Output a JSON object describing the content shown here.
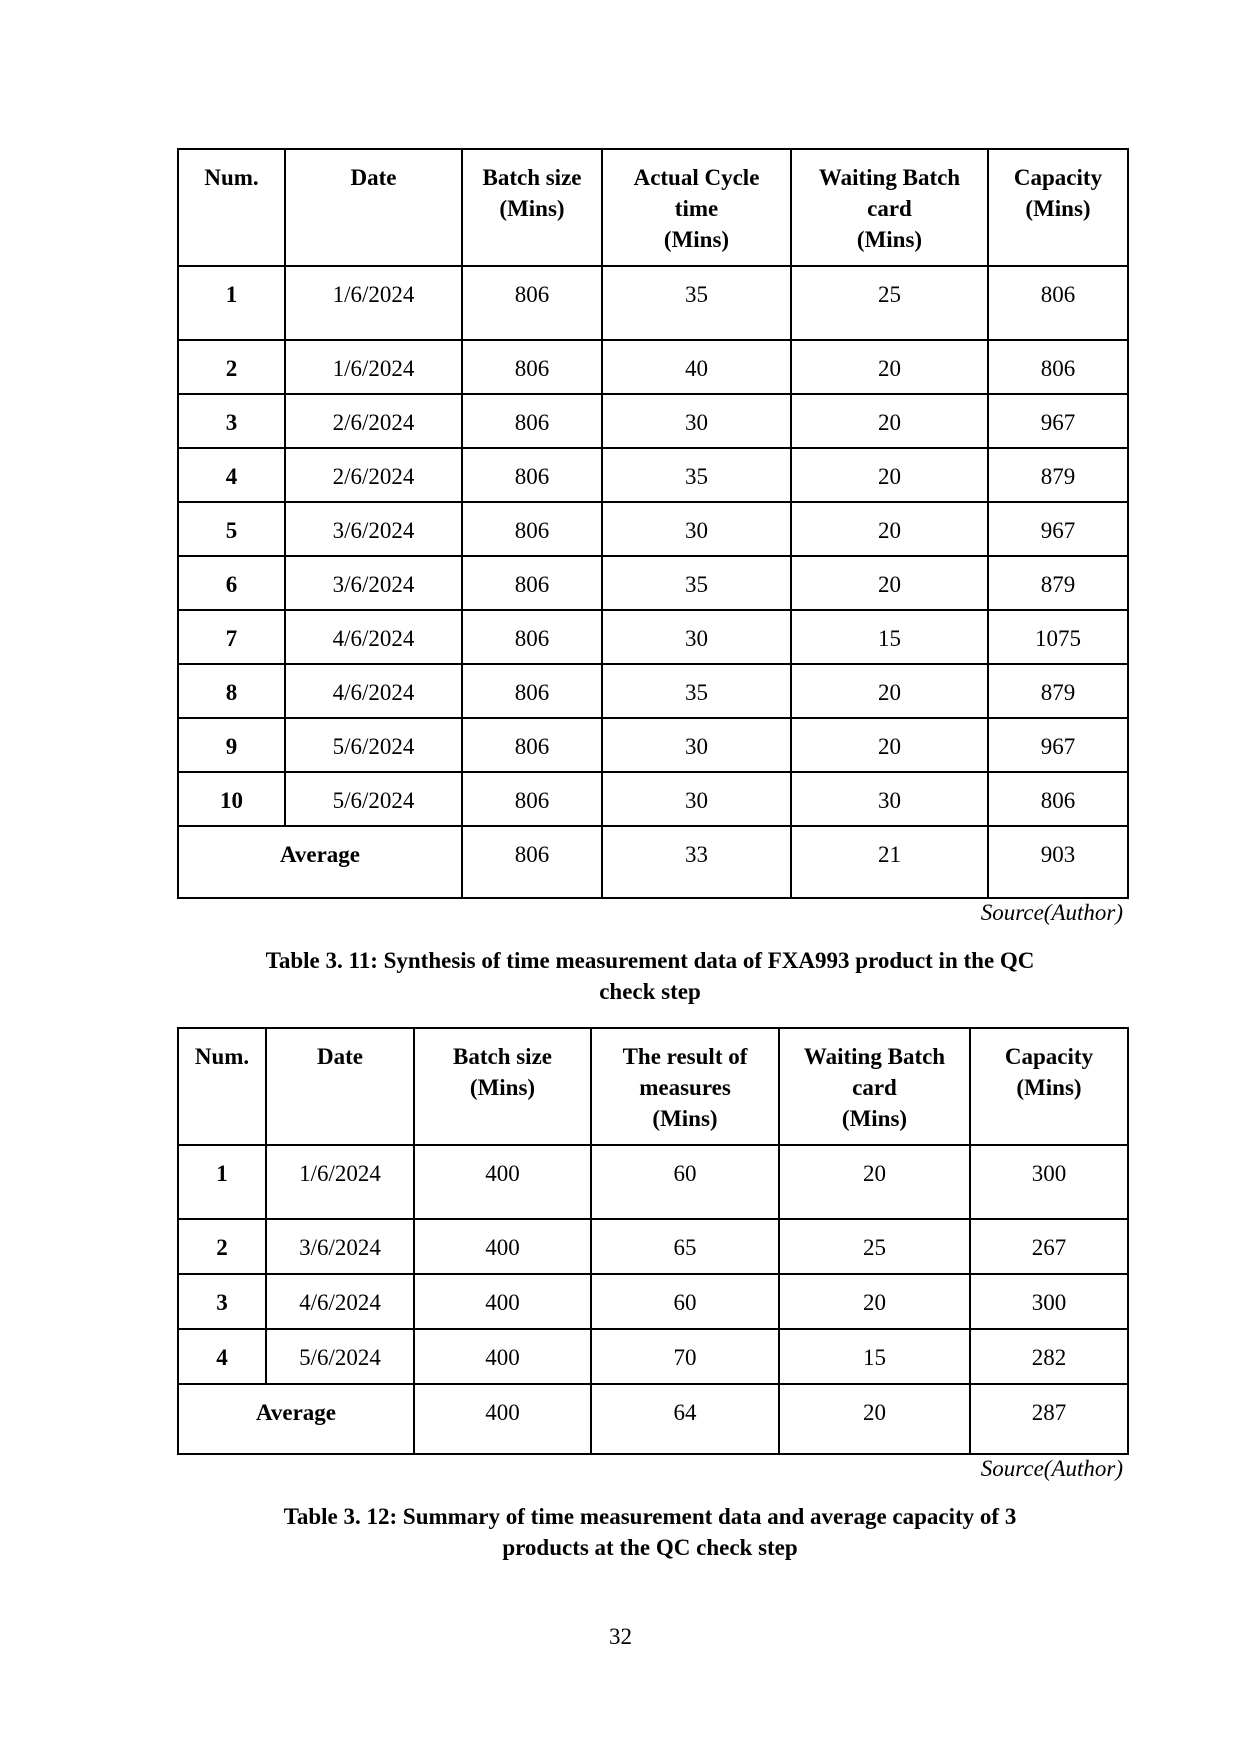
{
  "table1": {
    "headers": [
      [
        "Num."
      ],
      [
        "Date"
      ],
      [
        "Batch size",
        "(Mins)"
      ],
      [
        "Actual Cycle",
        "time",
        "(Mins)"
      ],
      [
        "Waiting Batch",
        "card",
        "(Mins)"
      ],
      [
        "Capacity",
        "(Mins)"
      ]
    ],
    "rows": [
      [
        "1",
        "1/6/2024",
        "806",
        "35",
        "25",
        "806"
      ],
      [
        "2",
        "1/6/2024",
        "806",
        "40",
        "20",
        "806"
      ],
      [
        "3",
        "2/6/2024",
        "806",
        "30",
        "20",
        "967"
      ],
      [
        "4",
        "2/6/2024",
        "806",
        "35",
        "20",
        "879"
      ],
      [
        "5",
        "3/6/2024",
        "806",
        "30",
        "20",
        "967"
      ],
      [
        "6",
        "3/6/2024",
        "806",
        "35",
        "20",
        "879"
      ],
      [
        "7",
        "4/6/2024",
        "806",
        "30",
        "15",
        "1075"
      ],
      [
        "8",
        "4/6/2024",
        "806",
        "35",
        "20",
        "879"
      ],
      [
        "9",
        "5/6/2024",
        "806",
        "30",
        "20",
        "967"
      ],
      [
        "10",
        "5/6/2024",
        "806",
        "30",
        "30",
        "806"
      ]
    ],
    "average": [
      "Average",
      "806",
      "33",
      "21",
      "903"
    ],
    "source": "Source(Author)"
  },
  "caption1": [
    "Table 3. 11: Synthesis of time measurement data of FXA993 product in the QC",
    "check step"
  ],
  "table2": {
    "headers": [
      [
        "Num."
      ],
      [
        "Date"
      ],
      [
        "Batch size",
        "(Mins)"
      ],
      [
        "The result of",
        "measures",
        "(Mins)"
      ],
      [
        "Waiting Batch",
        "card",
        "(Mins)"
      ],
      [
        "Capacity",
        "(Mins)"
      ]
    ],
    "rows": [
      [
        "1",
        "1/6/2024",
        "400",
        "60",
        "20",
        "300"
      ],
      [
        "2",
        "3/6/2024",
        "400",
        "65",
        "25",
        "267"
      ],
      [
        "3",
        "4/6/2024",
        "400",
        "60",
        "20",
        "300"
      ],
      [
        "4",
        "5/6/2024",
        "400",
        "70",
        "15",
        "282"
      ]
    ],
    "average": [
      "Average",
      "400",
      "64",
      "20",
      "287"
    ],
    "source": "Source(Author)"
  },
  "caption2": [
    "Table 3. 12: Summary of time measurement data and average capacity of 3",
    "products at the QC check step"
  ],
  "page_number": "32"
}
